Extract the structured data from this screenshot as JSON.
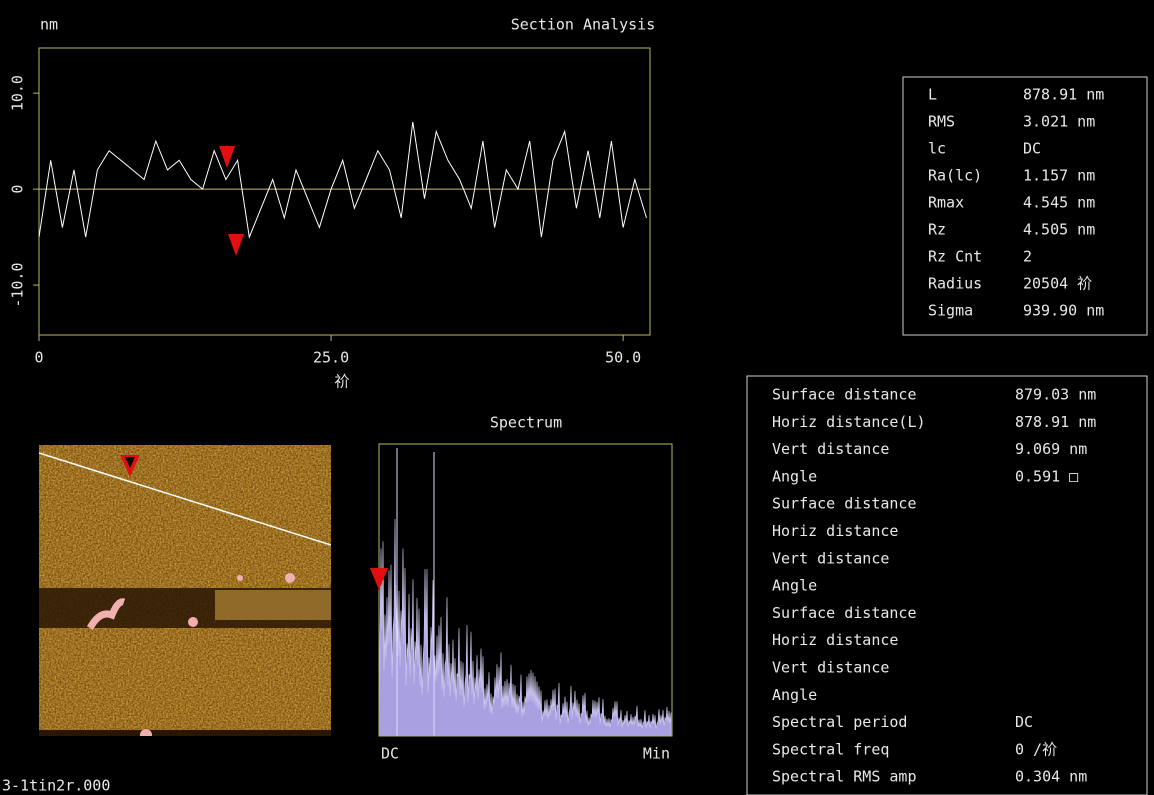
{
  "section": {
    "title": "Section Analysis",
    "y_unit": "nm",
    "x_unit": "祄",
    "color": "#ffffff",
    "xlim": [
      0,
      52.3
    ],
    "ylim": [
      -15.2,
      14.7
    ],
    "xticks": [
      0,
      {
        "value": 25,
        "label": "25.0"
      },
      {
        "value": 50,
        "label": "50.0"
      }
    ],
    "yticks": [
      {
        "value": 10,
        "label": "10.0"
      },
      0,
      {
        "value": -10,
        "label": "-10.0"
      }
    ],
    "x": [
      0,
      1,
      2,
      3,
      4,
      5,
      6,
      7,
      8,
      9,
      10,
      11,
      12,
      13,
      14,
      15,
      16,
      17,
      18,
      19,
      20,
      21,
      22,
      23,
      24,
      25,
      26,
      27,
      28,
      29,
      30,
      31,
      32,
      33,
      34,
      35,
      36,
      37,
      38,
      39,
      40,
      41,
      42,
      43,
      44,
      45,
      46,
      47,
      48,
      49,
      50,
      51,
      52
    ],
    "values": [
      -5,
      3,
      -4,
      2,
      -5,
      2,
      4,
      3,
      2,
      1,
      5,
      2,
      3,
      1,
      0,
      4,
      1,
      3,
      -5,
      -2,
      1,
      -3,
      2,
      -1,
      -4,
      0,
      3,
      -2,
      1,
      4,
      2,
      -3,
      7,
      -1,
      6,
      3,
      1,
      -2,
      5,
      -4,
      2,
      0,
      5,
      -5,
      3,
      6,
      -2,
      4,
      -3,
      5,
      -4,
      1,
      -3
    ]
  },
  "results": [
    [
      "L",
      "878.91 nm"
    ],
    [
      "RMS",
      "3.021 nm"
    ],
    [
      "lc",
      "DC"
    ],
    [
      "Ra(lc)",
      "1.157 nm"
    ],
    [
      "Rmax",
      "4.545 nm"
    ],
    [
      "Rz",
      "4.505 nm"
    ],
    [
      "Rz Cnt",
      "2"
    ],
    [
      "Radius",
      "20504 祄"
    ],
    [
      "Sigma",
      "939.90 nm"
    ]
  ],
  "measure": [
    {
      "color": "#d01818",
      "rows": [
        [
          "Surface distance",
          "879.03 nm"
        ],
        [
          "Horiz distance(L)",
          "878.91 nm"
        ],
        [
          "Vert distance",
          "9.069 nm"
        ],
        [
          "Angle",
          "0.591 □"
        ]
      ]
    },
    {
      "color": "#38b038",
      "rows": [
        [
          "Surface distance"
        ],
        [
          "Horiz distance"
        ],
        [
          "Vert distance"
        ],
        [
          "Angle"
        ]
      ]
    },
    {
      "color": "#f0f0f0",
      "rows": [
        [
          "Surface distance"
        ],
        [
          "Horiz distance"
        ],
        [
          "Vert distance"
        ],
        [
          "Angle"
        ]
      ]
    },
    {
      "color": "#d01818",
      "rows": [
        [
          "Spectral period",
          "DC"
        ],
        [
          "Spectral freq",
          "0 /祄"
        ],
        [
          "Spectral RMS amp",
          "0.304 nm"
        ]
      ]
    }
  ],
  "spectrum": {
    "title": "Spectrum",
    "x_start": "DC",
    "x_end": "Min"
  },
  "filename": "3-1tin2r.000"
}
